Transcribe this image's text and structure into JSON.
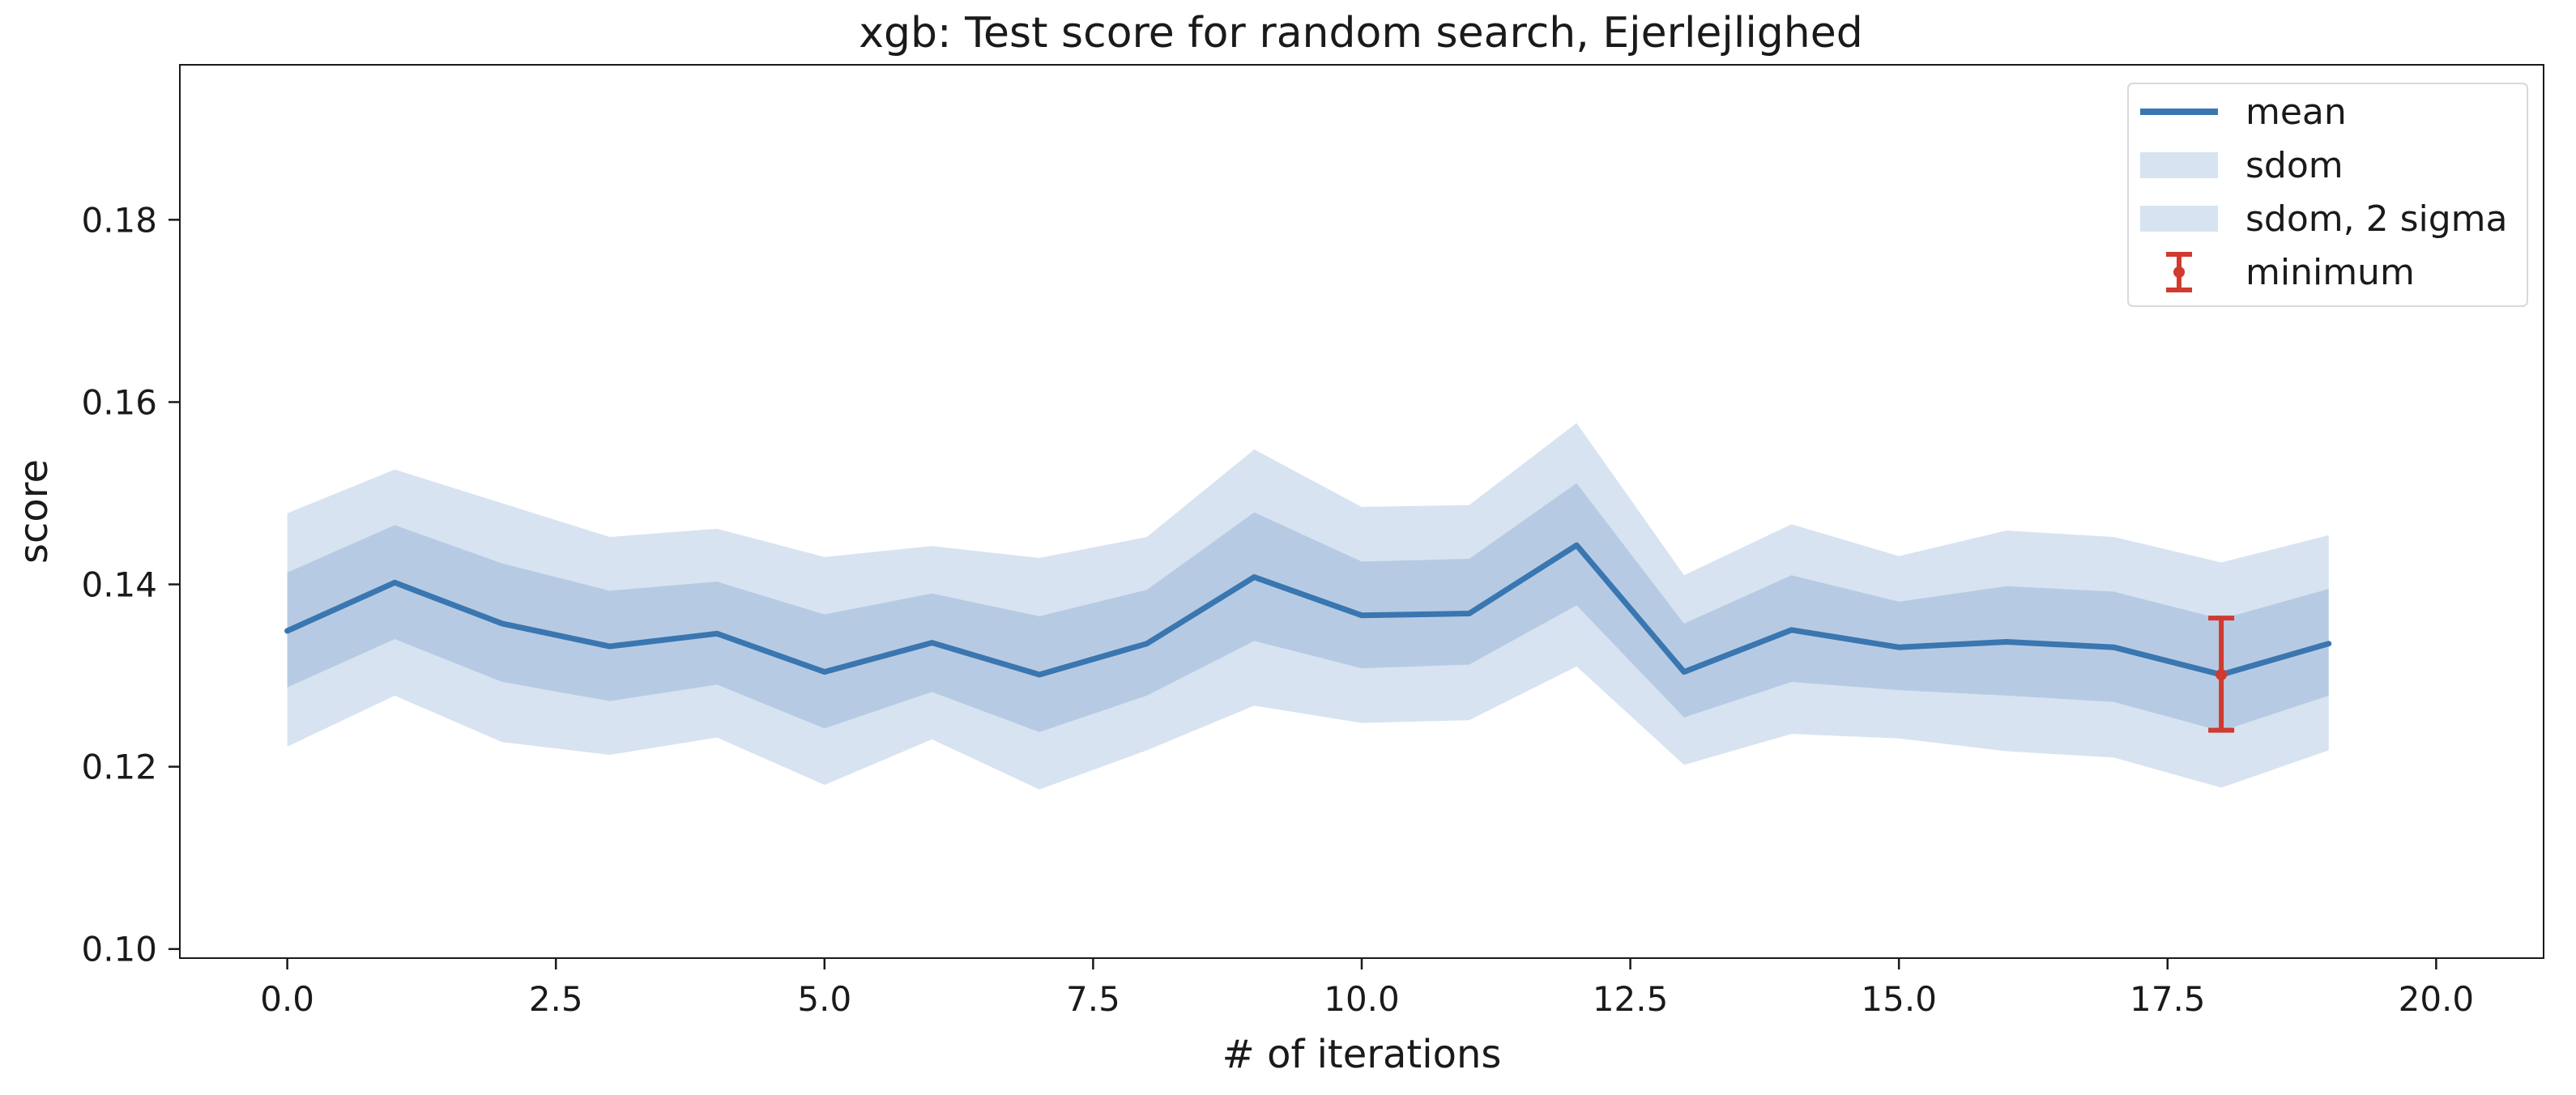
{
  "chart_data": {
    "type": "line",
    "title": "xgb: Test score for random search, Ejerlejlighed",
    "xlabel": "# of iterations",
    "ylabel": "score",
    "xlim": [
      -1,
      21
    ],
    "ylim": [
      0.099,
      0.197
    ],
    "x_ticks": [
      0,
      2.5,
      5,
      7.5,
      10,
      12.5,
      15,
      17.5,
      20
    ],
    "x_tick_labels": [
      "0.0",
      "2.5",
      "5.0",
      "7.5",
      "10.0",
      "12.5",
      "15.0",
      "17.5",
      "20.0"
    ],
    "y_ticks": [
      0.1,
      0.12,
      0.14,
      0.16,
      0.18
    ],
    "y_tick_labels": [
      "0.10",
      "0.12",
      "0.14",
      "0.16",
      "0.18"
    ],
    "grid": false,
    "legend_position": "top-right",
    "x": [
      0,
      1,
      2,
      3,
      4,
      5,
      6,
      7,
      8,
      9,
      10,
      11,
      12,
      13,
      14,
      15,
      16,
      17,
      18,
      19
    ],
    "series": [
      {
        "name": "mean",
        "kind": "line",
        "color": "#3a76b0",
        "values": [
          0.1349,
          0.1402,
          0.1357,
          0.1332,
          0.1346,
          0.1304,
          0.1336,
          0.1301,
          0.1335,
          0.1408,
          0.1366,
          0.1368,
          0.1443,
          0.1304,
          0.135,
          0.1331,
          0.1337,
          0.1331,
          0.1301,
          0.1335
        ]
      },
      {
        "name": "sdom",
        "kind": "band",
        "color": "#9bb8d9",
        "lower": [
          0.1287,
          0.134,
          0.1293,
          0.1272,
          0.129,
          0.1242,
          0.1282,
          0.1238,
          0.1278,
          0.1338,
          0.1308,
          0.1312,
          0.1377,
          0.1254,
          0.1293,
          0.1284,
          0.1278,
          0.1271,
          0.1239,
          0.1278
        ],
        "upper": [
          0.1413,
          0.1465,
          0.1423,
          0.1393,
          0.1403,
          0.1367,
          0.139,
          0.1365,
          0.1394,
          0.1479,
          0.1425,
          0.1428,
          0.1511,
          0.1357,
          0.141,
          0.1381,
          0.1398,
          0.1392,
          0.1362,
          0.1395
        ]
      },
      {
        "name": "sdom, 2 sigma",
        "kind": "band",
        "color": "#c2d4e8",
        "lower": [
          0.1222,
          0.1278,
          0.1227,
          0.1213,
          0.1232,
          0.118,
          0.123,
          0.1175,
          0.1218,
          0.1267,
          0.1248,
          0.1251,
          0.131,
          0.1202,
          0.1236,
          0.1231,
          0.1217,
          0.121,
          0.1177,
          0.1218
        ],
        "upper": [
          0.1478,
          0.1526,
          0.1489,
          0.1452,
          0.1461,
          0.143,
          0.1442,
          0.1429,
          0.1452,
          0.1548,
          0.1485,
          0.1487,
          0.1577,
          0.141,
          0.1466,
          0.1431,
          0.1459,
          0.1452,
          0.1424,
          0.1454
        ]
      }
    ],
    "minimum": {
      "name": "minimum",
      "color": "#d03a2f",
      "x": 18,
      "y": 0.1301,
      "lower": 0.124,
      "upper": 0.1363
    }
  }
}
